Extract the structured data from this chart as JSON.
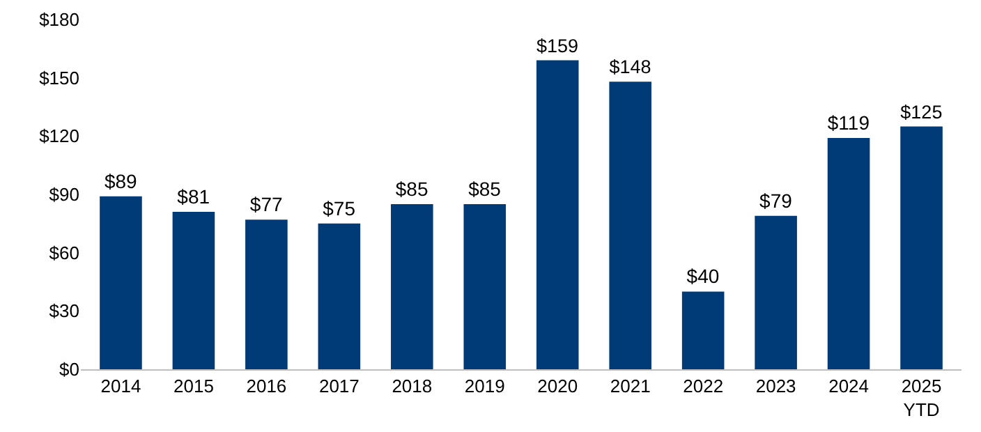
{
  "chart_data": {
    "type": "bar",
    "categories": [
      "2014",
      "2015",
      "2016",
      "2017",
      "2018",
      "2019",
      "2020",
      "2021",
      "2022",
      "2023",
      "2024",
      "2025\nYTD"
    ],
    "values": [
      89,
      81,
      77,
      75,
      85,
      85,
      159,
      148,
      40,
      79,
      119,
      125
    ],
    "value_labels": [
      "$89",
      "$81",
      "$77",
      "$75",
      "$85",
      "$85",
      "$159",
      "$148",
      "$40",
      "$79",
      "$119",
      "$125"
    ],
    "color": "#003b78",
    "ylim": [
      0,
      180
    ],
    "yticks": [
      {
        "value": 0,
        "label": "$0"
      },
      {
        "value": 30,
        "label": "$30"
      },
      {
        "value": 60,
        "label": "$60"
      },
      {
        "value": 90,
        "label": "$90"
      },
      {
        "value": 120,
        "label": "$120"
      },
      {
        "value": 150,
        "label": "$150"
      },
      {
        "value": 180,
        "label": "$180"
      }
    ],
    "grid": false
  }
}
